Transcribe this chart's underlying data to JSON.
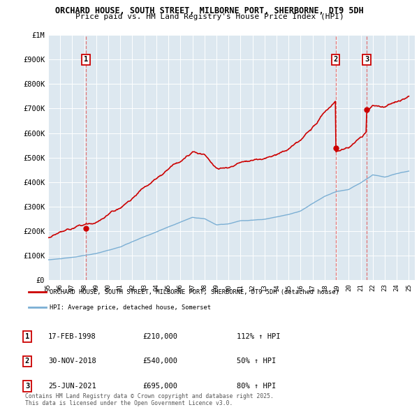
{
  "title1": "ORCHARD HOUSE, SOUTH STREET, MILBORNE PORT, SHERBORNE, DT9 5DH",
  "title2": "Price paid vs. HM Land Registry's House Price Index (HPI)",
  "xlim_start": 1995.0,
  "xlim_end": 2025.5,
  "ylim_min": 0,
  "ylim_max": 1000000,
  "yticks": [
    0,
    100000,
    200000,
    300000,
    400000,
    500000,
    600000,
    700000,
    800000,
    900000,
    1000000
  ],
  "ytick_labels": [
    "£0",
    "£100K",
    "£200K",
    "£300K",
    "£400K",
    "£500K",
    "£600K",
    "£700K",
    "£800K",
    "£900K",
    "£1M"
  ],
  "xticks": [
    1995,
    1996,
    1997,
    1998,
    1999,
    2000,
    2001,
    2002,
    2003,
    2004,
    2005,
    2006,
    2007,
    2008,
    2009,
    2010,
    2011,
    2012,
    2013,
    2014,
    2015,
    2016,
    2017,
    2018,
    2019,
    2020,
    2021,
    2022,
    2023,
    2024,
    2025
  ],
  "xtick_labels": [
    "95",
    "96",
    "97",
    "98",
    "99",
    "00",
    "01",
    "02",
    "03",
    "04",
    "05",
    "06",
    "07",
    "08",
    "09",
    "10",
    "11",
    "12",
    "13",
    "14",
    "15",
    "16",
    "17",
    "18",
    "19",
    "20",
    "21",
    "22",
    "23",
    "24",
    "25"
  ],
  "sale_dates": [
    1998.13,
    2018.92,
    2021.49
  ],
  "sale_prices": [
    210000,
    540000,
    695000
  ],
  "sale_labels": [
    "1",
    "2",
    "3"
  ],
  "red_color": "#cc0000",
  "blue_color": "#7bafd4",
  "chart_bg": "#dde8f0",
  "legend_label_red": "ORCHARD HOUSE, SOUTH STREET, MILBORNE PORT, SHERBORNE, DT9 5DH (detached house)",
  "legend_label_blue": "HPI: Average price, detached house, Somerset",
  "table_rows": [
    [
      "1",
      "17-FEB-1998",
      "£210,000",
      "112% ↑ HPI"
    ],
    [
      "2",
      "30-NOV-2018",
      "£540,000",
      "50% ↑ HPI"
    ],
    [
      "3",
      "25-JUN-2021",
      "£695,000",
      "80% ↑ HPI"
    ]
  ],
  "footnote": "Contains HM Land Registry data © Crown copyright and database right 2025.\nThis data is licensed under the Open Government Licence v3.0.",
  "bg_color": "#ffffff",
  "grid_color": "#ffffff",
  "dashed_color": "#e06060"
}
